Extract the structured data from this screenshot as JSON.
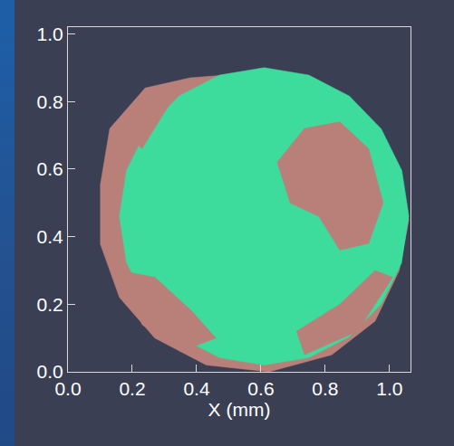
{
  "chart_data": {
    "type": "area",
    "xlabel": "X (mm)",
    "xlim": [
      0,
      1.065
    ],
    "ylim": [
      0,
      1.02
    ],
    "xticks": [
      {
        "value": 0,
        "label": "0.0"
      },
      {
        "value": 0.2,
        "label": "0.2"
      },
      {
        "value": 0.4,
        "label": "0.4"
      },
      {
        "value": 0.6,
        "label": "0.6"
      },
      {
        "value": 0.8,
        "label": "0.8"
      },
      {
        "value": 1,
        "label": "1.0"
      }
    ],
    "yticks": [
      {
        "value": 0,
        "label": "0.0"
      },
      {
        "value": 0.2,
        "label": "0.2"
      },
      {
        "value": 0.4,
        "label": "0.4"
      },
      {
        "value": 0.6,
        "label": "0.6"
      },
      {
        "value": 0.8,
        "label": "0.8"
      },
      {
        "value": 1,
        "label": "1.0"
      }
    ],
    "grid": false,
    "series": [
      {
        "color": "#b98079",
        "x": [
          0.1,
          0.13,
          0.24,
          0.38,
          0.515,
          0.65,
          0.76,
          0.9,
          1.01,
          1.06,
          1.03,
          0.955,
          0.82,
          0.625,
          0.43,
          0.27,
          0.16,
          0.1
        ],
        "values": [
          0.55,
          0.72,
          0.84,
          0.87,
          0.88,
          0.88,
          0.84,
          0.78,
          0.62,
          0.45,
          0.3,
          0.15,
          0.05,
          0.0,
          0.02,
          0.1,
          0.22,
          0.38
        ]
      },
      {
        "color": "#3ddb9c",
        "x": [
          1.06,
          1.038,
          0.974,
          0.875,
          0.749,
          0.61,
          0.471,
          0.345,
          0.246,
          0.182,
          0.16,
          0.182,
          0.246,
          0.345,
          0.471,
          0.61,
          0.749,
          0.875,
          0.974,
          1.038
        ],
        "values": [
          0.46,
          0.596,
          0.719,
          0.816,
          0.878,
          0.9,
          0.878,
          0.816,
          0.719,
          0.596,
          0.46,
          0.324,
          0.201,
          0.104,
          0.042,
          0.02,
          0.042,
          0.104,
          0.201,
          0.324
        ]
      },
      {
        "color": "#b98079",
        "x": [
          0.65,
          0.735,
          0.845,
          0.935,
          0.98,
          0.935,
          0.845,
          0.78,
          0.69
        ],
        "values": [
          0.62,
          0.72,
          0.74,
          0.66,
          0.5,
          0.38,
          0.36,
          0.46,
          0.5
        ]
      },
      {
        "color": "#b98079",
        "x": [
          0.16,
          0.27,
          0.385,
          0.46,
          0.35,
          0.23
        ],
        "values": [
          0.3,
          0.28,
          0.18,
          0.1,
          0.06,
          0.14
        ]
      },
      {
        "color": "#b98079",
        "x": [
          0.735,
          0.9,
          1.01,
          0.955,
          0.845,
          0.71
        ],
        "values": [
          0.05,
          0.12,
          0.28,
          0.3,
          0.2,
          0.12
        ]
      },
      {
        "color": "#b98079",
        "x": [
          0.185,
          0.27,
          0.36,
          0.295,
          0.23
        ],
        "values": [
          0.7,
          0.82,
          0.86,
          0.76,
          0.66
        ]
      }
    ]
  }
}
